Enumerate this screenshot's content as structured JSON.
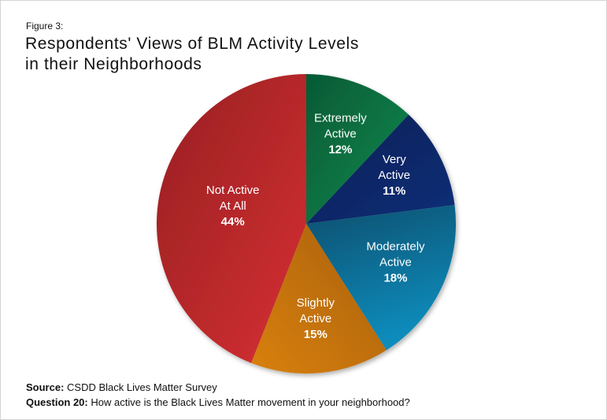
{
  "figure_label": "Figure 3:",
  "title_line1": "Respondents' Views of BLM Activity Levels",
  "title_line2": "in their Neighborhoods",
  "source": {
    "label": "Source:",
    "text": "CSDD Black Lives Matter Survey",
    "question_label": "Question 20:",
    "question_text": "How active is the Black Lives Matter movement in your neighborhood?"
  },
  "chart_data": {
    "type": "pie",
    "title": "Respondents' Views of BLM Activity Levels in their Neighborhoods",
    "categories": [
      "Extremely Active",
      "Very Active",
      "Moderately Active",
      "Slightly Active",
      "Not Active At All"
    ],
    "values": [
      12,
      11,
      18,
      15,
      44
    ],
    "unit": "%",
    "colors": [
      "#0a7a45",
      "#0c2a6b",
      "#0a6f95",
      "#c67a12",
      "#c12a2c"
    ],
    "start_angle": "12 o'clock, clockwise",
    "labels": [
      {
        "line1": "Extremely",
        "line2": "Active",
        "pct": "12%"
      },
      {
        "line1": "Very",
        "line2": "Active",
        "pct": "11%"
      },
      {
        "line1": "Moderately",
        "line2": "Active",
        "pct": "18%"
      },
      {
        "line1": "Slightly",
        "line2": "Active",
        "pct": "15%"
      },
      {
        "line1": "Not Active",
        "line2": "At All",
        "pct": "44%"
      }
    ]
  }
}
